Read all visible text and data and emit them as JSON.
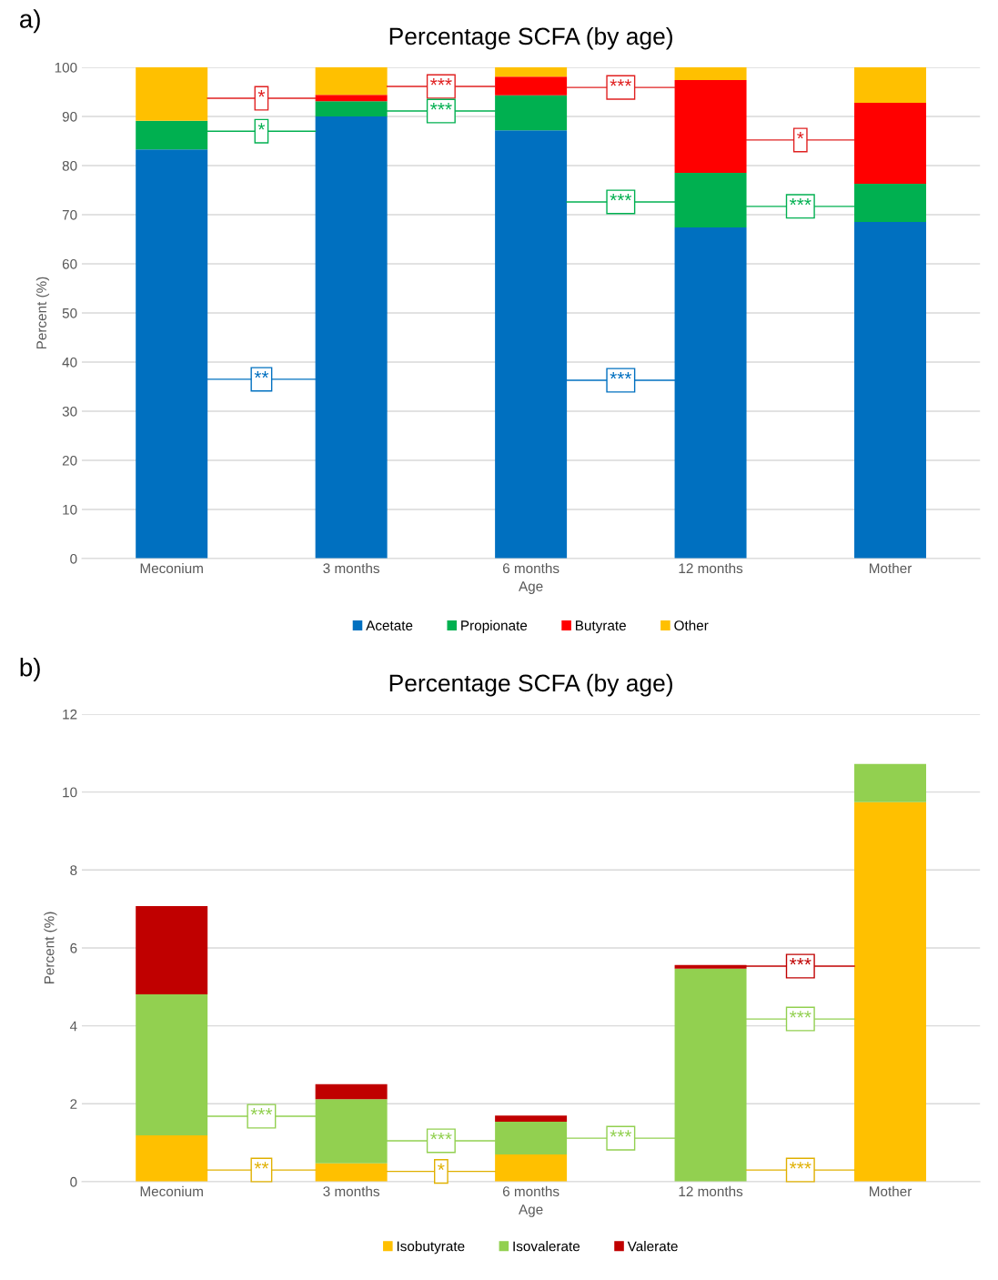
{
  "chart_data": [
    {
      "type": "bar",
      "stacked": true,
      "title": "Percentage SCFA (by age)",
      "xlabel": "Age",
      "ylabel": "Percent (%)",
      "categories": [
        "Meconium",
        "3 months",
        "6 months",
        "12 months",
        "Mother"
      ],
      "series": [
        {
          "name": "Acetate",
          "color": "#0070c0",
          "values": [
            83.3,
            90.0,
            87.2,
            67.4,
            68.5
          ]
        },
        {
          "name": "Propionate",
          "color": "#00b050",
          "values": [
            5.8,
            3.1,
            7.1,
            11.1,
            7.8
          ]
        },
        {
          "name": "Butyrate",
          "color": "#ff0000",
          "values": [
            0,
            1.3,
            3.8,
            18.9,
            16.5
          ]
        },
        {
          "name": "Other",
          "color": "#ffc000",
          "values": [
            10.9,
            5.6,
            1.9,
            2.6,
            7.2
          ]
        }
      ],
      "ylim": [
        0,
        100
      ],
      "yticks": [
        0,
        10,
        20,
        30,
        40,
        50,
        60,
        70,
        80,
        90,
        100
      ],
      "grid": "y",
      "legend": "bottom",
      "annotations": [
        "a)",
        "*",
        "*",
        "**",
        "***",
        "***",
        "***",
        "***",
        "***",
        "*",
        "***"
      ]
    },
    {
      "type": "bar",
      "stacked": true,
      "title": "Percentage SCFA (by age)",
      "xlabel": "Age",
      "ylabel": "Percent (%)",
      "categories": [
        "Meconium",
        "3 months",
        "6 months",
        "12 months",
        "Mother"
      ],
      "series": [
        {
          "name": "Isobutyrate",
          "color": "#ffc000",
          "values": [
            1.19,
            0.47,
            0.7,
            null,
            9.74
          ]
        },
        {
          "name": "Isovalerate",
          "color": "#92d050",
          "values": [
            3.62,
            1.65,
            0.84,
            5.47,
            0.98
          ]
        },
        {
          "name": "Valerate",
          "color": "#c00000",
          "values": [
            2.26,
            0.38,
            0.16,
            0.09,
            0
          ]
        }
      ],
      "ylim": [
        0,
        12
      ],
      "yticks": [
        0,
        2,
        4,
        6,
        8,
        10,
        12
      ],
      "grid": "y",
      "legend": "bottom",
      "annotations": [
        "b)",
        "***",
        "**",
        "***",
        "*",
        "***",
        "***",
        "***",
        "***"
      ]
    }
  ]
}
